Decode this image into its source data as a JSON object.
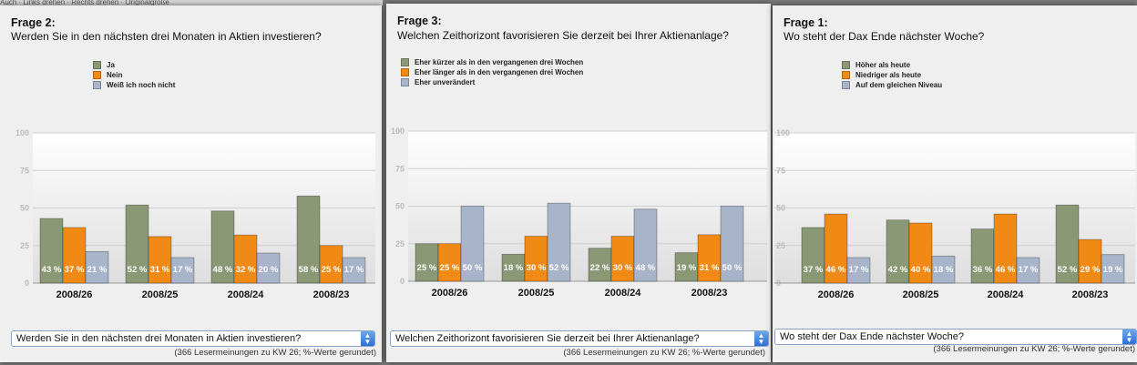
{
  "topbar": {
    "text": "Auch · Links drehen · Rechts drehen · Originalgröße"
  },
  "colors": {
    "green": "#8a9876",
    "orange": "#f08a14",
    "blue": "#a7b4c9"
  },
  "panels": [
    {
      "title": "Frage 2:",
      "question": "Werden Sie in den nächsten drei Monaten in Aktien investieren?",
      "select_value": "Werden Sie in den nächsten drei Monaten in Aktien investieren?",
      "footnote": "(366 Lesermeinungen zu KW 26; %-Werte gerundet)"
    },
    {
      "title": "Frage 3:",
      "question": "Welchen Zeithorizont favorisieren Sie derzeit bei Ihrer Aktienanlage?",
      "select_value": "Welchen Zeithorizont favorisieren Sie derzeit bei Ihrer Aktienanlage?",
      "footnote": "(366 Lesermeinungen zu KW 26; %-Werte gerundet)"
    },
    {
      "title": "Frage 1:",
      "question": "Wo steht der Dax Ende nächster Woche?",
      "select_value": "Wo steht der Dax Ende nächster Woche?",
      "footnote": "(366 Lesermeinungen zu KW 26; %-Werte gerundet)"
    }
  ],
  "chart_data": [
    {
      "type": "bar",
      "title": "Werden Sie in den nächsten drei Monaten in Aktien investieren?",
      "categories": [
        "2008/26",
        "2008/25",
        "2008/24",
        "2008/23"
      ],
      "yticks": [
        0,
        25,
        50,
        75,
        100
      ],
      "ylim": [
        0,
        100
      ],
      "label_suffix": " %",
      "series": [
        {
          "name": "Ja",
          "color": "#8a9876",
          "values": [
            43,
            52,
            48,
            58
          ]
        },
        {
          "name": "Nein",
          "color": "#f08a14",
          "values": [
            37,
            31,
            32,
            25
          ]
        },
        {
          "name": "Weiß ich noch  nicht",
          "color": "#a7b4c9",
          "values": [
            21,
            17,
            20,
            17
          ]
        }
      ]
    },
    {
      "type": "bar",
      "title": "Welchen Zeithorizont favorisieren Sie derzeit bei Ihrer Aktienanlage?",
      "categories": [
        "2008/26",
        "2008/25",
        "2008/24",
        "2008/23"
      ],
      "yticks": [
        0,
        25,
        50,
        75,
        100
      ],
      "ylim": [
        0,
        100
      ],
      "label_suffix": " %",
      "series": [
        {
          "name": "Eher kürzer als in den vergangenen drei Wochen",
          "color": "#8a9876",
          "values": [
            25,
            18,
            22,
            19
          ]
        },
        {
          "name": "Eher länger als in den vergangenen drei Wochen",
          "color": "#f08a14",
          "values": [
            25,
            30,
            30,
            31
          ]
        },
        {
          "name": "Eher unverändert",
          "color": "#a7b4c9",
          "values": [
            50,
            52,
            48,
            50
          ]
        }
      ]
    },
    {
      "type": "bar",
      "title": "Wo steht der Dax Ende nächster Woche?",
      "categories": [
        "2008/26",
        "2008/25",
        "2008/24",
        "2008/23"
      ],
      "yticks": [
        0,
        25,
        50,
        75,
        100
      ],
      "ylim": [
        0,
        100
      ],
      "label_suffix": " %",
      "series": [
        {
          "name": "Höher als heute",
          "color": "#8a9876",
          "values": [
            37,
            42,
            36,
            52
          ]
        },
        {
          "name": "Niedriger als heute",
          "color": "#f08a14",
          "values": [
            46,
            40,
            46,
            29
          ]
        },
        {
          "name": "Auf dem gleichen Niveau",
          "color": "#a7b4c9",
          "values": [
            17,
            18,
            17,
            19
          ]
        }
      ]
    }
  ]
}
